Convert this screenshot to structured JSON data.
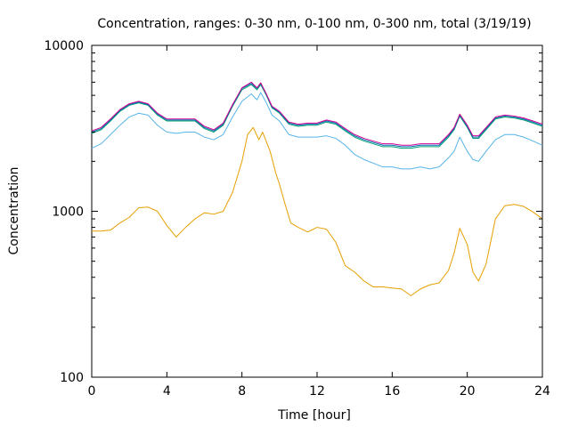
{
  "chart_data": {
    "type": "line",
    "title": "Concentration, ranges: 0-30 nm, 0-100 nm, 0-300 nm, total (3/19/19)",
    "xlabel": "Time [hour]",
    "ylabel": "Concentration",
    "xlim": [
      0,
      24
    ],
    "ylim": [
      100,
      10000
    ],
    "yscale": "log",
    "grid": false,
    "xticks": [
      0,
      4,
      8,
      12,
      16,
      20,
      24
    ],
    "xtick_labels": [
      "0",
      "4",
      "8",
      "12",
      "16",
      "20",
      "24"
    ],
    "yticks": [
      100,
      1000,
      10000
    ],
    "ytick_labels": [
      "100",
      "1000",
      "10000"
    ],
    "series": [
      {
        "color": "#e69f00",
        "x": [
          0,
          0.5,
          1,
          1.5,
          2,
          2.5,
          3,
          3.5,
          4,
          4.5,
          5,
          5.5,
          6,
          6.5,
          7,
          7.5,
          8,
          8.3,
          8.6,
          8.9,
          9.1,
          9.5,
          9.8,
          10,
          10.3,
          10.6,
          11,
          11.5,
          12,
          12.5,
          13,
          13.5,
          14,
          14.5,
          15,
          15.5,
          16,
          16.5,
          17,
          17.5,
          18,
          18.5,
          19,
          19.3,
          19.6,
          20,
          20.3,
          20.6,
          21,
          21.5,
          22,
          22.5,
          23,
          23.5,
          24
        ],
        "y": [
          760,
          760,
          770,
          850,
          920,
          1050,
          1060,
          1000,
          820,
          700,
          800,
          900,
          980,
          960,
          1000,
          1300,
          2000,
          2900,
          3200,
          2700,
          3000,
          2300,
          1700,
          1450,
          1100,
          850,
          800,
          750,
          800,
          780,
          650,
          470,
          430,
          380,
          350,
          350,
          345,
          340,
          310,
          340,
          360,
          370,
          440,
          560,
          790,
          630,
          430,
          380,
          480,
          900,
          1080,
          1100,
          1070,
          990,
          900
        ]
      },
      {
        "color": "#56b4e9",
        "x": [
          0,
          0.5,
          1,
          1.5,
          2,
          2.5,
          3,
          3.5,
          4,
          4.5,
          5,
          5.5,
          6,
          6.5,
          7,
          7.5,
          8,
          8.5,
          8.8,
          9,
          9.3,
          9.6,
          10,
          10.5,
          11,
          11.5,
          12,
          12.5,
          13,
          13.5,
          14,
          14.5,
          15,
          15.5,
          16,
          16.5,
          17,
          17.5,
          18,
          18.5,
          19,
          19.3,
          19.6,
          20,
          20.3,
          20.6,
          21,
          21.5,
          22,
          22.5,
          23,
          23.5,
          24
        ],
        "y": [
          2400,
          2550,
          2900,
          3300,
          3700,
          3900,
          3800,
          3300,
          3000,
          2950,
          3000,
          3000,
          2800,
          2700,
          2900,
          3700,
          4600,
          5100,
          4700,
          5200,
          4500,
          3800,
          3500,
          2900,
          2800,
          2800,
          2800,
          2850,
          2750,
          2500,
          2200,
          2050,
          1950,
          1850,
          1850,
          1800,
          1800,
          1850,
          1800,
          1850,
          2100,
          2300,
          2800,
          2300,
          2050,
          2000,
          2300,
          2700,
          2900,
          2900,
          2800,
          2650,
          2500
        ]
      },
      {
        "color": "#009e73",
        "x": [
          0,
          0.5,
          1,
          1.5,
          2,
          2.5,
          3,
          3.5,
          4,
          4.5,
          5,
          5.5,
          6,
          6.5,
          7,
          7.5,
          8,
          8.5,
          8.8,
          9,
          9.3,
          9.6,
          10,
          10.5,
          11,
          11.5,
          12,
          12.5,
          13,
          13.5,
          14,
          14.5,
          15,
          15.5,
          16,
          16.5,
          17,
          17.5,
          18,
          18.5,
          19,
          19.3,
          19.6,
          20,
          20.3,
          20.6,
          21,
          21.5,
          22,
          22.5,
          23,
          23.5,
          24
        ],
        "y": [
          2950,
          3100,
          3500,
          4000,
          4350,
          4500,
          4350,
          3800,
          3500,
          3500,
          3500,
          3500,
          3150,
          3000,
          3300,
          4300,
          5400,
          5800,
          5400,
          5800,
          5000,
          4200,
          3900,
          3350,
          3250,
          3300,
          3300,
          3450,
          3350,
          3050,
          2800,
          2650,
          2550,
          2450,
          2450,
          2400,
          2400,
          2450,
          2450,
          2450,
          2800,
          3100,
          3750,
          3200,
          2750,
          2750,
          3100,
          3600,
          3700,
          3650,
          3550,
          3400,
          3250
        ]
      },
      {
        "color": "#0072b2",
        "x": [
          0,
          0.5,
          1,
          1.5,
          2,
          2.5,
          3,
          3.5,
          4,
          4.5,
          5,
          5.5,
          6,
          6.5,
          7,
          7.5,
          8,
          8.5,
          8.8,
          9,
          9.3,
          9.6,
          10,
          10.5,
          11,
          11.5,
          12,
          12.5,
          13,
          13.5,
          14,
          14.5,
          15,
          15.5,
          16,
          16.5,
          17,
          17.5,
          18,
          18.5,
          19,
          19.3,
          19.6,
          20,
          20.3,
          20.6,
          21,
          21.5,
          22,
          22.5,
          23,
          23.5,
          24
        ],
        "y": [
          3000,
          3150,
          3550,
          4050,
          4400,
          4550,
          4400,
          3850,
          3550,
          3550,
          3550,
          3550,
          3200,
          3050,
          3350,
          4350,
          5500,
          5900,
          5500,
          5900,
          5050,
          4250,
          3950,
          3400,
          3300,
          3350,
          3350,
          3500,
          3400,
          3100,
          2850,
          2700,
          2600,
          2500,
          2500,
          2450,
          2450,
          2500,
          2500,
          2500,
          2850,
          3150,
          3800,
          3250,
          2800,
          2800,
          3150,
          3650,
          3750,
          3700,
          3600,
          3450,
          3300
        ]
      },
      {
        "color": "#d00090",
        "x": [
          0,
          0.5,
          1,
          1.5,
          2,
          2.5,
          3,
          3.5,
          4,
          4.5,
          5,
          5.5,
          6,
          6.5,
          7,
          7.5,
          8,
          8.5,
          8.8,
          9,
          9.3,
          9.6,
          10,
          10.5,
          11,
          11.5,
          12,
          12.5,
          13,
          13.5,
          14,
          14.5,
          15,
          15.5,
          16,
          16.5,
          17,
          17.5,
          18,
          18.5,
          19,
          19.3,
          19.6,
          20,
          20.3,
          20.6,
          21,
          21.5,
          22,
          22.5,
          23,
          23.5,
          24
        ],
        "y": [
          3050,
          3200,
          3600,
          4100,
          4450,
          4600,
          4450,
          3900,
          3600,
          3600,
          3600,
          3600,
          3250,
          3100,
          3400,
          4400,
          5550,
          6000,
          5550,
          5950,
          5100,
          4300,
          4000,
          3450,
          3350,
          3400,
          3400,
          3550,
          3450,
          3150,
          2900,
          2750,
          2650,
          2550,
          2550,
          2500,
          2500,
          2550,
          2550,
          2550,
          2900,
          3200,
          3850,
          3300,
          2850,
          2850,
          3200,
          3700,
          3800,
          3750,
          3650,
          3500,
          3350
        ]
      }
    ]
  }
}
